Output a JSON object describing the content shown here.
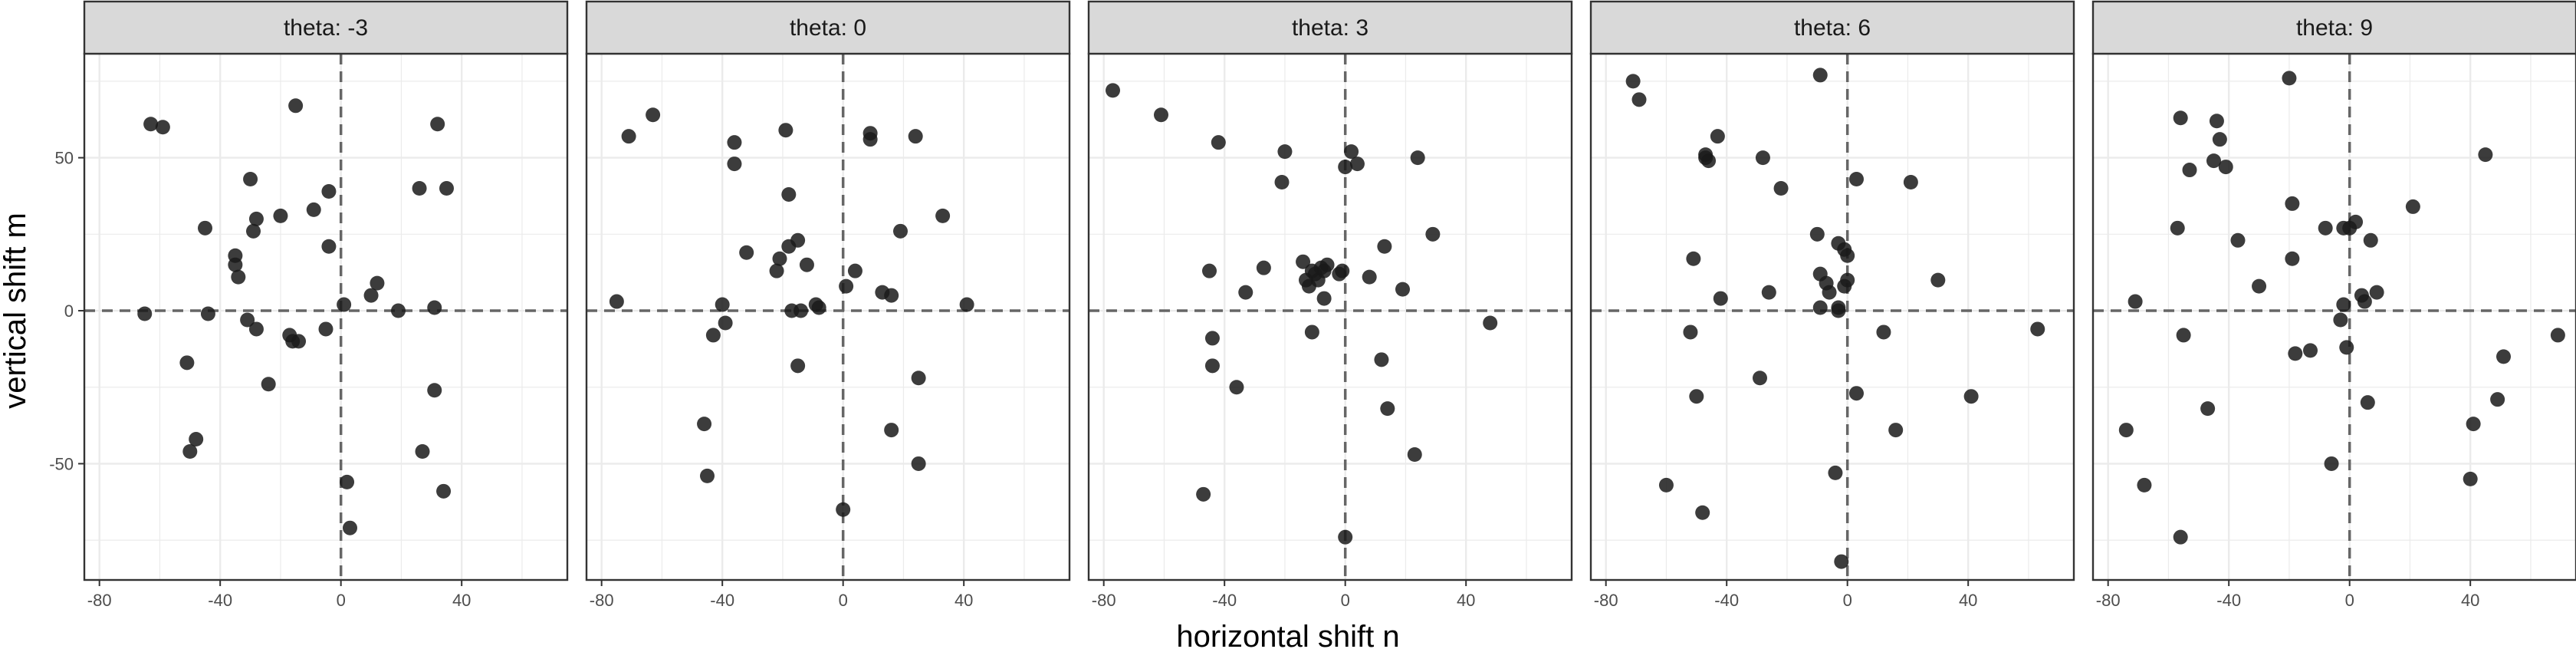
{
  "chart_data": {
    "type": "scatter",
    "xlabel": "horizontal shift n",
    "ylabel": "vertical shift m",
    "xlim": [
      -85,
      75
    ],
    "ylim": [
      -88,
      84
    ],
    "x_ticks": [
      -80,
      -40,
      0,
      40
    ],
    "y_ticks": [
      -50,
      0,
      50
    ],
    "grid": true,
    "reference_lines": {
      "x": 0,
      "y": 0
    },
    "colors": {
      "points": "#1a1a1a",
      "grid": "#ebebeb",
      "strip_fill": "#d9d9d9",
      "ref_line": "#666666"
    },
    "panels": [
      {
        "label": "theta: -3",
        "points": [
          [
            -65,
            -1
          ],
          [
            -63,
            61
          ],
          [
            -59,
            60
          ],
          [
            -51,
            -17
          ],
          [
            -50,
            -46
          ],
          [
            -48,
            -42
          ],
          [
            -45,
            27
          ],
          [
            -44,
            -1
          ],
          [
            -35,
            15
          ],
          [
            -35,
            18
          ],
          [
            -34,
            11
          ],
          [
            -31,
            -3
          ],
          [
            -30,
            43
          ],
          [
            -29,
            26
          ],
          [
            -28,
            30
          ],
          [
            -28,
            -6
          ],
          [
            -24,
            -24
          ],
          [
            -20,
            31
          ],
          [
            -17,
            -8
          ],
          [
            -16,
            -10
          ],
          [
            -15,
            67
          ],
          [
            -14,
            -10
          ],
          [
            -9,
            33
          ],
          [
            -5,
            -6
          ],
          [
            -4,
            21
          ],
          [
            -4,
            39
          ],
          [
            1,
            2
          ],
          [
            2,
            -56
          ],
          [
            3,
            -71
          ],
          [
            10,
            5
          ],
          [
            12,
            9
          ],
          [
            19,
            0
          ],
          [
            26,
            40
          ],
          [
            27,
            -46
          ],
          [
            31,
            1
          ],
          [
            31,
            -26
          ],
          [
            32,
            61
          ],
          [
            34,
            -59
          ],
          [
            35,
            40
          ]
        ]
      },
      {
        "label": "theta: 0",
        "points": [
          [
            -75,
            3
          ],
          [
            -71,
            57
          ],
          [
            -63,
            64
          ],
          [
            -46,
            -37
          ],
          [
            -45,
            -54
          ],
          [
            -43,
            -8
          ],
          [
            -40,
            2
          ],
          [
            -39,
            -4
          ],
          [
            -36,
            55
          ],
          [
            -36,
            48
          ],
          [
            -32,
            19
          ],
          [
            -22,
            13
          ],
          [
            -21,
            17
          ],
          [
            -19,
            59
          ],
          [
            -18,
            38
          ],
          [
            -18,
            21
          ],
          [
            -17,
            0
          ],
          [
            -15,
            -18
          ],
          [
            -15,
            23
          ],
          [
            -14,
            0
          ],
          [
            -12,
            15
          ],
          [
            -9,
            2
          ],
          [
            -8,
            1
          ],
          [
            0,
            -65
          ],
          [
            1,
            8
          ],
          [
            4,
            13
          ],
          [
            9,
            56
          ],
          [
            9,
            58
          ],
          [
            13,
            6
          ],
          [
            16,
            5
          ],
          [
            16,
            -39
          ],
          [
            19,
            26
          ],
          [
            24,
            57
          ],
          [
            25,
            -22
          ],
          [
            25,
            -50
          ],
          [
            33,
            31
          ],
          [
            41,
            2
          ]
        ]
      },
      {
        "label": "theta: 3",
        "points": [
          [
            -77,
            72
          ],
          [
            -61,
            64
          ],
          [
            -47,
            -60
          ],
          [
            -45,
            13
          ],
          [
            -44,
            -18
          ],
          [
            -44,
            -9
          ],
          [
            -42,
            55
          ],
          [
            -36,
            -25
          ],
          [
            -33,
            6
          ],
          [
            -27,
            14
          ],
          [
            -21,
            42
          ],
          [
            -20,
            52
          ],
          [
            -14,
            16
          ],
          [
            -13,
            10
          ],
          [
            -12,
            8
          ],
          [
            -11,
            -7
          ],
          [
            -11,
            13
          ],
          [
            -10,
            12
          ],
          [
            -9,
            10
          ],
          [
            -8,
            14
          ],
          [
            -7,
            13
          ],
          [
            -7,
            4
          ],
          [
            -6,
            15
          ],
          [
            -2,
            12
          ],
          [
            -1,
            13
          ],
          [
            0,
            -74
          ],
          [
            0,
            47
          ],
          [
            2,
            52
          ],
          [
            4,
            48
          ],
          [
            8,
            11
          ],
          [
            12,
            -16
          ],
          [
            13,
            21
          ],
          [
            14,
            -32
          ],
          [
            19,
            7
          ],
          [
            23,
            -47
          ],
          [
            24,
            50
          ],
          [
            29,
            25
          ],
          [
            48,
            -4
          ]
        ]
      },
      {
        "label": "theta: 6",
        "points": [
          [
            -71,
            75
          ],
          [
            -69,
            69
          ],
          [
            -60,
            -57
          ],
          [
            -52,
            -7
          ],
          [
            -51,
            17
          ],
          [
            -50,
            -28
          ],
          [
            -48,
            -66
          ],
          [
            -47,
            51
          ],
          [
            -47,
            50
          ],
          [
            -46,
            49
          ],
          [
            -43,
            57
          ],
          [
            -42,
            4
          ],
          [
            -29,
            -22
          ],
          [
            -28,
            50
          ],
          [
            -26,
            6
          ],
          [
            -22,
            40
          ],
          [
            -10,
            25
          ],
          [
            -9,
            77
          ],
          [
            -9,
            1
          ],
          [
            -9,
            12
          ],
          [
            -7,
            9
          ],
          [
            -6,
            6
          ],
          [
            -4,
            -53
          ],
          [
            -3,
            1
          ],
          [
            -3,
            22
          ],
          [
            -3,
            0
          ],
          [
            -2,
            -82
          ],
          [
            -1,
            20
          ],
          [
            -1,
            8
          ],
          [
            0,
            18
          ],
          [
            0,
            10
          ],
          [
            3,
            -27
          ],
          [
            3,
            43
          ],
          [
            12,
            -7
          ],
          [
            16,
            -39
          ],
          [
            21,
            42
          ],
          [
            30,
            10
          ],
          [
            41,
            -28
          ],
          [
            63,
            -6
          ]
        ]
      },
      {
        "label": "theta: 9",
        "points": [
          [
            -74,
            -39
          ],
          [
            -71,
            3
          ],
          [
            -68,
            -57
          ],
          [
            -57,
            27
          ],
          [
            -56,
            63
          ],
          [
            -56,
            -74
          ],
          [
            -55,
            -8
          ],
          [
            -53,
            46
          ],
          [
            -47,
            -32
          ],
          [
            -45,
            49
          ],
          [
            -44,
            62
          ],
          [
            -43,
            56
          ],
          [
            -41,
            47
          ],
          [
            -37,
            23
          ],
          [
            -30,
            8
          ],
          [
            -20,
            76
          ],
          [
            -19,
            17
          ],
          [
            -19,
            35
          ],
          [
            -18,
            -14
          ],
          [
            -13,
            -13
          ],
          [
            -8,
            27
          ],
          [
            -6,
            -50
          ],
          [
            -3,
            -3
          ],
          [
            -2,
            27
          ],
          [
            -2,
            2
          ],
          [
            -1,
            -12
          ],
          [
            0,
            27
          ],
          [
            2,
            29
          ],
          [
            4,
            5
          ],
          [
            5,
            3
          ],
          [
            6,
            -30
          ],
          [
            7,
            23
          ],
          [
            9,
            6
          ],
          [
            21,
            34
          ],
          [
            40,
            -55
          ],
          [
            41,
            -37
          ],
          [
            45,
            51
          ],
          [
            49,
            -29
          ],
          [
            51,
            -15
          ],
          [
            69,
            -8
          ]
        ]
      }
    ]
  }
}
